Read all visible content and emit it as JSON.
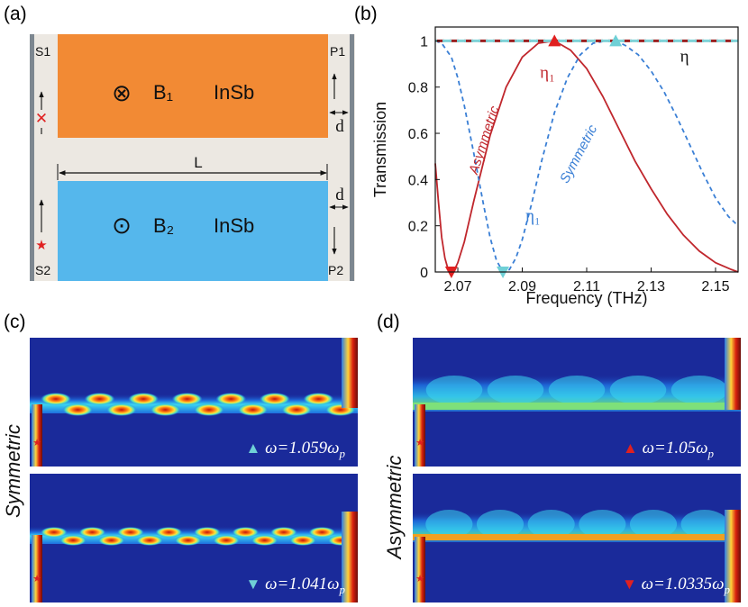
{
  "panel_labels": {
    "a": "(a)",
    "b": "(b)",
    "c": "(c)",
    "d": "(d)"
  },
  "diagram": {
    "s1": "S1",
    "s2": "S2",
    "p1": "P1",
    "p2": "P2",
    "b1": "B₁",
    "b2": "B₂",
    "material_top": "InSb",
    "material_bottom": "InSb",
    "length_label": "L",
    "gap_label_top": "d",
    "gap_label_bottom": "d",
    "otimes": "⊗",
    "odot": "⊙"
  },
  "chart_data": {
    "type": "line",
    "panel": "(b)",
    "xlabel": "Frequency (THz)",
    "ylabel": "Transmission",
    "xlim": [
      2.063,
      2.157
    ],
    "ylim": [
      0,
      1.06
    ],
    "xticks": [
      2.07,
      2.09,
      2.11,
      2.13,
      2.15
    ],
    "xtick_labels": [
      "2.07",
      "2.09",
      "2.11",
      "2.13",
      "2.15"
    ],
    "yticks": [
      0,
      0.2,
      0.4,
      0.6,
      0.8,
      1
    ],
    "ytick_labels": [
      "0",
      "0.2",
      "0.4",
      "0.6",
      "0.8",
      "1"
    ],
    "series": [
      {
        "name": "Asymmetric η₁",
        "color": "#c0272d",
        "style": "solid",
        "x": [
          2.063,
          2.064,
          2.065,
          2.066,
          2.067,
          2.068,
          2.069,
          2.07,
          2.072,
          2.075,
          2.08,
          2.085,
          2.09,
          2.095,
          2.1,
          2.105,
          2.11,
          2.115,
          2.12,
          2.125,
          2.13,
          2.135,
          2.14,
          2.145,
          2.15,
          2.155,
          2.157
        ],
        "y": [
          0.47,
          0.3,
          0.15,
          0.06,
          0.01,
          0.0,
          0.01,
          0.04,
          0.13,
          0.31,
          0.59,
          0.8,
          0.93,
          0.99,
          1.0,
          0.96,
          0.88,
          0.76,
          0.62,
          0.48,
          0.36,
          0.25,
          0.16,
          0.09,
          0.04,
          0.01,
          0.0
        ]
      },
      {
        "name": "Symmetric η₁",
        "color": "#3a7fd5",
        "style": "dashed",
        "x": [
          2.063,
          2.065,
          2.068,
          2.07,
          2.072,
          2.075,
          2.078,
          2.08,
          2.082,
          2.084,
          2.086,
          2.088,
          2.09,
          2.093,
          2.096,
          2.1,
          2.104,
          2.108,
          2.112,
          2.116,
          2.119,
          2.122,
          2.126,
          2.13,
          2.134,
          2.138,
          2.142,
          2.146,
          2.15,
          2.154,
          2.157
        ],
        "y": [
          1.0,
          0.99,
          0.93,
          0.84,
          0.72,
          0.51,
          0.29,
          0.15,
          0.05,
          0.0,
          0.01,
          0.06,
          0.14,
          0.3,
          0.48,
          0.69,
          0.84,
          0.94,
          0.99,
          1.0,
          1.0,
          0.98,
          0.94,
          0.87,
          0.78,
          0.67,
          0.55,
          0.43,
          0.32,
          0.24,
          0.2
        ]
      },
      {
        "name": "Asymmetric η",
        "color": "#9b1f1f",
        "style": "dashed",
        "x": [
          2.063,
          2.157
        ],
        "y": [
          1,
          1
        ]
      },
      {
        "name": "Symmetric η",
        "color": "#7fd3d8",
        "style": "dashed",
        "x": [
          2.063,
          2.157
        ],
        "y": [
          1,
          1
        ]
      }
    ],
    "markers": [
      {
        "shape": "triangle-down",
        "color": "#e02020",
        "x": 2.068,
        "y": 0
      },
      {
        "shape": "triangle-down",
        "color": "#6fd0d6",
        "x": 2.084,
        "y": 0
      },
      {
        "shape": "triangle-up",
        "color": "#e02020",
        "x": 2.1,
        "y": 1
      },
      {
        "shape": "triangle-up",
        "color": "#6fd0d6",
        "x": 2.119,
        "y": 1
      }
    ],
    "annotations": {
      "asymmetric": "Asymmetric",
      "symmetric": "Symmetric",
      "eta": "η",
      "eta1_red": "η₁",
      "eta1_blue": "η₁"
    }
  },
  "fields": {
    "c_side_label": "Symmetric",
    "d_side_label": "Asymmetric",
    "c_top": {
      "omega": "ω=1.059ω",
      "sub": "p"
    },
    "c_bottom": {
      "omega": "ω=1.041ω",
      "sub": "p"
    },
    "d_top": {
      "omega": "ω=1.05ω",
      "sub": "p"
    },
    "d_bottom": {
      "omega": "ω=1.0335ω",
      "sub": "p"
    },
    "colors": {
      "cyan_marker": "#6fd0d6",
      "red_marker": "#e02020",
      "background": "#1a2a9a"
    }
  }
}
